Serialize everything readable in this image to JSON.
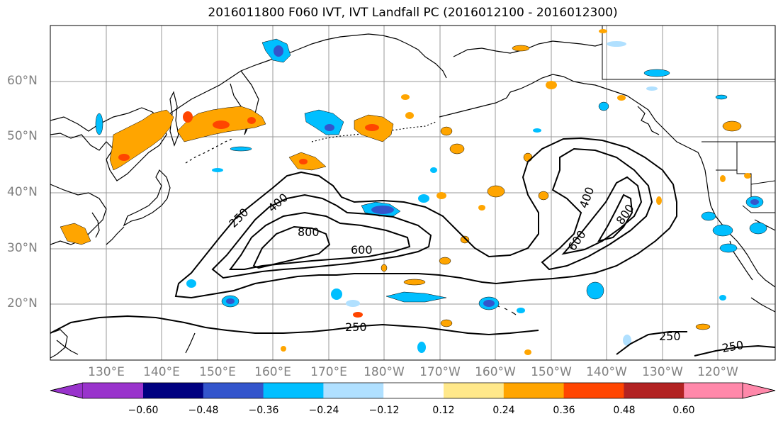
{
  "title": "2016011800 F060 IVT, IVT Landfall PC (2016012100 - 2016012300)",
  "lat_labels": [
    "60°N",
    "50°N",
    "40°N",
    "30°N",
    "20°N"
  ],
  "lon_labels": [
    "130°E",
    "140°E",
    "150°E",
    "160°E",
    "170°E",
    "180°W",
    "170°W",
    "160°W",
    "150°W",
    "140°W",
    "130°W",
    "120°W"
  ],
  "contour_labels": [
    "250",
    "400",
    "800",
    "600",
    "400",
    "600",
    "800",
    "250",
    "250",
    "250"
  ],
  "colorbar": {
    "tick_labels": [
      "−0.60",
      "−0.48",
      "−0.36",
      "−0.24",
      "−0.12",
      "0.12",
      "0.24",
      "0.36",
      "0.48",
      "0.60"
    ],
    "colors": [
      "#9933cc",
      "#000080",
      "#3355cc",
      "#00bfff",
      "#b0e0ff",
      "#ffffff",
      "#ffe88a",
      "#ffa500",
      "#ff4500",
      "#b22222",
      "#ff88aa"
    ]
  },
  "shading_colors": {
    "orange": "#ffa500",
    "red": "#ff4500",
    "light_yellow": "#ffe88a",
    "cyan": "#00bfff",
    "blue": "#3355cc",
    "light_blue": "#b0e0ff",
    "purple": "#9933cc"
  }
}
